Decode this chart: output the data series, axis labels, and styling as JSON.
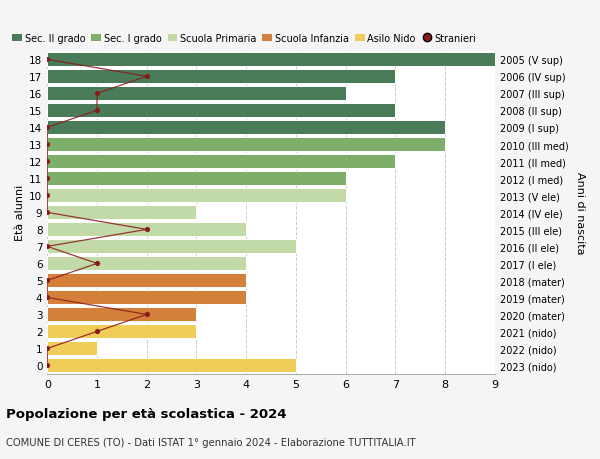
{
  "ages": [
    18,
    17,
    16,
    15,
    14,
    13,
    12,
    11,
    10,
    9,
    8,
    7,
    6,
    5,
    4,
    3,
    2,
    1,
    0
  ],
  "years": [
    "2005 (V sup)",
    "2006 (IV sup)",
    "2007 (III sup)",
    "2008 (II sup)",
    "2009 (I sup)",
    "2010 (III med)",
    "2011 (II med)",
    "2012 (I med)",
    "2013 (V ele)",
    "2014 (IV ele)",
    "2015 (III ele)",
    "2016 (II ele)",
    "2017 (I ele)",
    "2018 (mater)",
    "2019 (mater)",
    "2020 (mater)",
    "2021 (nido)",
    "2022 (nido)",
    "2023 (nido)"
  ],
  "bar_values": [
    9,
    7,
    6,
    7,
    8,
    8,
    7,
    6,
    6,
    3,
    4,
    5,
    4,
    4,
    4,
    3,
    3,
    1,
    5
  ],
  "bar_colors": [
    "#4a7c59",
    "#4a7c59",
    "#4a7c59",
    "#4a7c59",
    "#4a7c59",
    "#7daf6a",
    "#7daf6a",
    "#7daf6a",
    "#c2d9a8",
    "#c2d9a8",
    "#c2d9a8",
    "#c2d9a8",
    "#c2d9a8",
    "#d4803a",
    "#d4803a",
    "#d4803a",
    "#f0cc58",
    "#f0cc58",
    "#f0cc58"
  ],
  "stranieri_x": [
    0,
    2,
    1,
    1,
    0,
    0,
    0,
    0,
    0,
    0,
    2,
    0,
    1,
    0,
    0,
    2,
    1,
    0,
    0
  ],
  "title_bold": "Popolazione per età scolastica - 2024",
  "subtitle": "COMUNE DI CERES (TO) - Dati ISTAT 1° gennaio 2024 - Elaborazione TUTTITALIA.IT",
  "ylabel_left": "Età alunni",
  "ylabel_right": "Anni di nascita",
  "legend_labels": [
    "Sec. II grado",
    "Sec. I grado",
    "Scuola Primaria",
    "Scuola Infanzia",
    "Asilo Nido",
    "Stranieri"
  ],
  "legend_colors": [
    "#4a7c59",
    "#7daf6a",
    "#c2d9a8",
    "#d4803a",
    "#f0cc58",
    "#8b1a1a"
  ],
  "bg_color": "#f5f5f5",
  "plot_bg": "#ffffff",
  "xlim": [
    0,
    9
  ],
  "stranieri_color": "#8b1a1a",
  "grid_color": "#cccccc",
  "bar_height": 0.82
}
